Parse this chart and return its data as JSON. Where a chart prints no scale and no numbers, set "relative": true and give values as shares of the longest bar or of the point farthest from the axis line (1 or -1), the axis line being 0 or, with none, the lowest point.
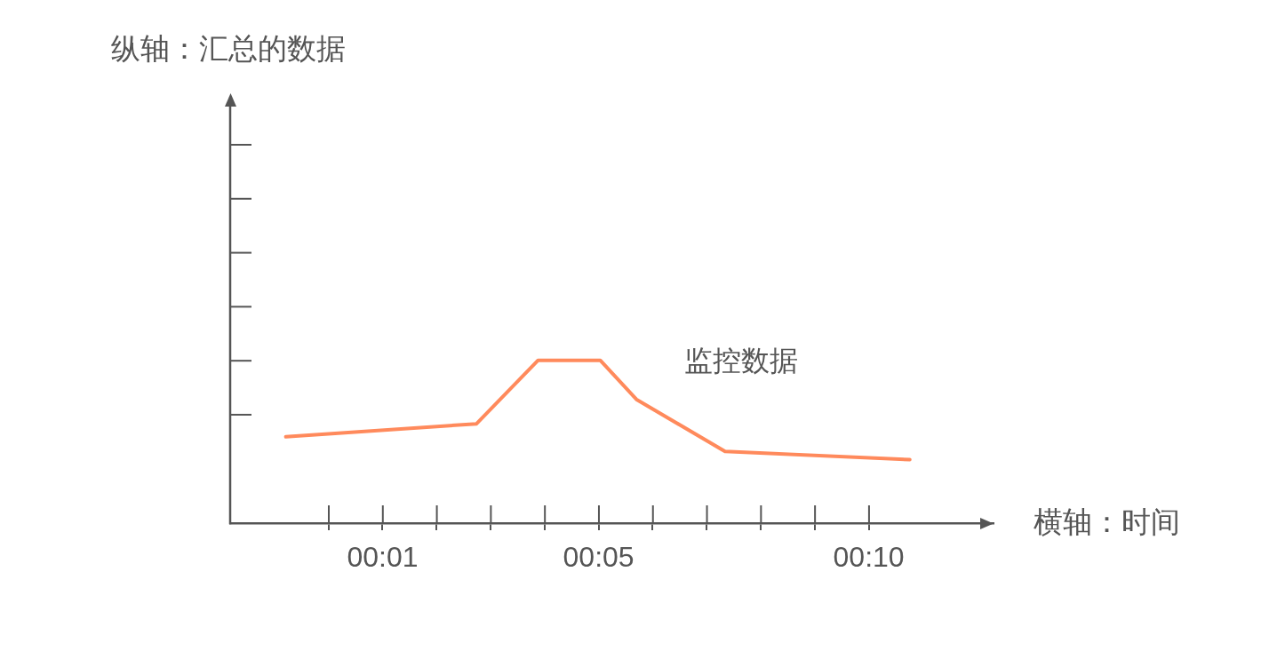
{
  "chart_data": {
    "type": "line",
    "xlabel": "横轴：时间",
    "relative": true,
    "annotations": [
      "纵轴：汇总的数据"
    ],
    "xlim": [
      -1.82,
      12.31
    ],
    "xticks": [
      {
        "value": 0,
        "label": null
      },
      {
        "value": 1,
        "label": "00:01"
      },
      {
        "value": 2,
        "label": null
      },
      {
        "value": 3,
        "label": null
      },
      {
        "value": 4,
        "label": null
      },
      {
        "value": 5,
        "label": "00:05"
      },
      {
        "value": 6,
        "label": null
      },
      {
        "value": 7,
        "label": null
      },
      {
        "value": 8,
        "label": null
      },
      {
        "value": 9,
        "label": null
      },
      {
        "value": 10,
        "label": "00:10"
      }
    ],
    "x": [
      -0.79,
      2.74,
      3.88,
      5.03,
      5.7,
      7.34,
      10.76
    ],
    "series": [
      {
        "name": "监控数据",
        "color": "#ff8a5c",
        "values": [
          0.53,
          0.61,
          1,
          1,
          0.76,
          0.44,
          0.39
        ]
      }
    ],
    "grid": false,
    "legend": false,
    "marker": "none",
    "line_style": "solid"
  }
}
